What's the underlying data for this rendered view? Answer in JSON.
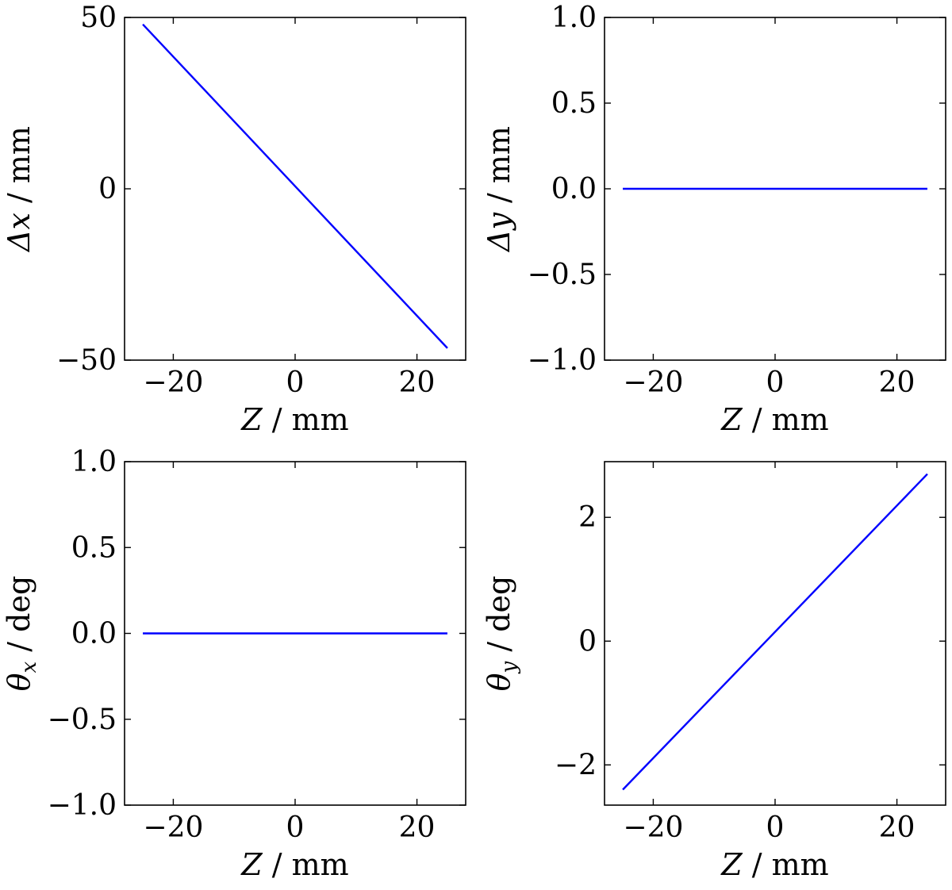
{
  "chart_data": [
    {
      "type": "line",
      "xlabel": "Z / mm",
      "ylabel": "Δx / mm",
      "xlabel_parts": {
        "var": "Z",
        "sub": "",
        "unit": " / mm"
      },
      "ylabel_parts": {
        "var": "Δx",
        "sub": "",
        "unit": " / mm"
      },
      "xlim": [
        -28,
        28
      ],
      "ylim": [
        -50,
        50
      ],
      "xticks": [
        -20,
        0,
        20
      ],
      "yticks": [
        -50,
        0,
        50
      ],
      "xtick_labels": [
        "−20",
        "0",
        "20"
      ],
      "ytick_labels": [
        "−50",
        "0",
        "50"
      ],
      "x": [
        -25,
        25
      ],
      "series": [
        {
          "values": [
            48,
            -46.5
          ],
          "color": "#0000ff"
        }
      ],
      "grid": false
    },
    {
      "type": "line",
      "xlabel": "Z / mm",
      "ylabel": "Δy / mm",
      "xlabel_parts": {
        "var": "Z",
        "sub": "",
        "unit": " / mm"
      },
      "ylabel_parts": {
        "var": "Δy",
        "sub": "",
        "unit": " / mm"
      },
      "xlim": [
        -28,
        28
      ],
      "ylim": [
        -1.0,
        1.0
      ],
      "xticks": [
        -20,
        0,
        20
      ],
      "yticks": [
        -1.0,
        -0.5,
        0.0,
        0.5,
        1.0
      ],
      "xtick_labels": [
        "−20",
        "0",
        "20"
      ],
      "ytick_labels": [
        "−1.0",
        "−0.5",
        "0.0",
        "0.5",
        "1.0"
      ],
      "x": [
        -25,
        25
      ],
      "series": [
        {
          "values": [
            0.0,
            0.0
          ],
          "color": "#0000ff"
        }
      ],
      "grid": false
    },
    {
      "type": "line",
      "xlabel": "Z / mm",
      "ylabel": "θx / deg",
      "xlabel_parts": {
        "var": "Z",
        "sub": "",
        "unit": " / mm"
      },
      "ylabel_parts": {
        "var": "θ",
        "sub": "x",
        "unit": " / deg"
      },
      "xlim": [
        -28,
        28
      ],
      "ylim": [
        -1.0,
        1.0
      ],
      "xticks": [
        -20,
        0,
        20
      ],
      "yticks": [
        -1.0,
        -0.5,
        0.0,
        0.5,
        1.0
      ],
      "xtick_labels": [
        "−20",
        "0",
        "20"
      ],
      "ytick_labels": [
        "−1.0",
        "−0.5",
        "0.0",
        "0.5",
        "1.0"
      ],
      "x": [
        -25,
        25
      ],
      "series": [
        {
          "values": [
            0.0,
            0.0
          ],
          "color": "#0000ff"
        }
      ],
      "grid": false
    },
    {
      "type": "line",
      "xlabel": "Z / mm",
      "ylabel": "θy / deg",
      "xlabel_parts": {
        "var": "Z",
        "sub": "",
        "unit": " / mm"
      },
      "ylabel_parts": {
        "var": "θ",
        "sub": "y",
        "unit": " / deg"
      },
      "xlim": [
        -28,
        28
      ],
      "ylim": [
        -2.65,
        2.9
      ],
      "xticks": [
        -20,
        0,
        20
      ],
      "yticks": [
        -2,
        0,
        2
      ],
      "xtick_labels": [
        "−20",
        "0",
        "20"
      ],
      "ytick_labels": [
        "−2",
        "0",
        "2"
      ],
      "x": [
        -25,
        25
      ],
      "series": [
        {
          "values": [
            -2.4,
            2.7
          ],
          "color": "#0000ff"
        }
      ],
      "grid": false
    }
  ]
}
